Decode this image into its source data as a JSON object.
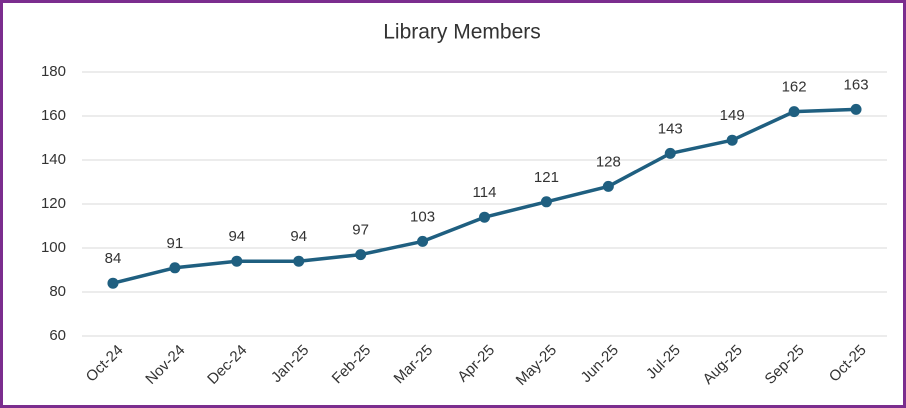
{
  "chart_data": {
    "type": "line",
    "title": "Library Members",
    "categories": [
      "Oct-24",
      "Nov-24",
      "Dec-24",
      "Jan-25",
      "Feb-25",
      "Mar-25",
      "Apr-25",
      "May-25",
      "Jun-25",
      "Jul-25",
      "Aug-25",
      "Sep-25",
      "Oct-25"
    ],
    "values": [
      84,
      91,
      94,
      94,
      97,
      103,
      114,
      121,
      128,
      143,
      149,
      162,
      163
    ],
    "color": "#1f5f80",
    "ylim": [
      60,
      180
    ],
    "yticks": [
      60,
      80,
      100,
      120,
      140,
      160,
      180
    ],
    "grid": true
  }
}
